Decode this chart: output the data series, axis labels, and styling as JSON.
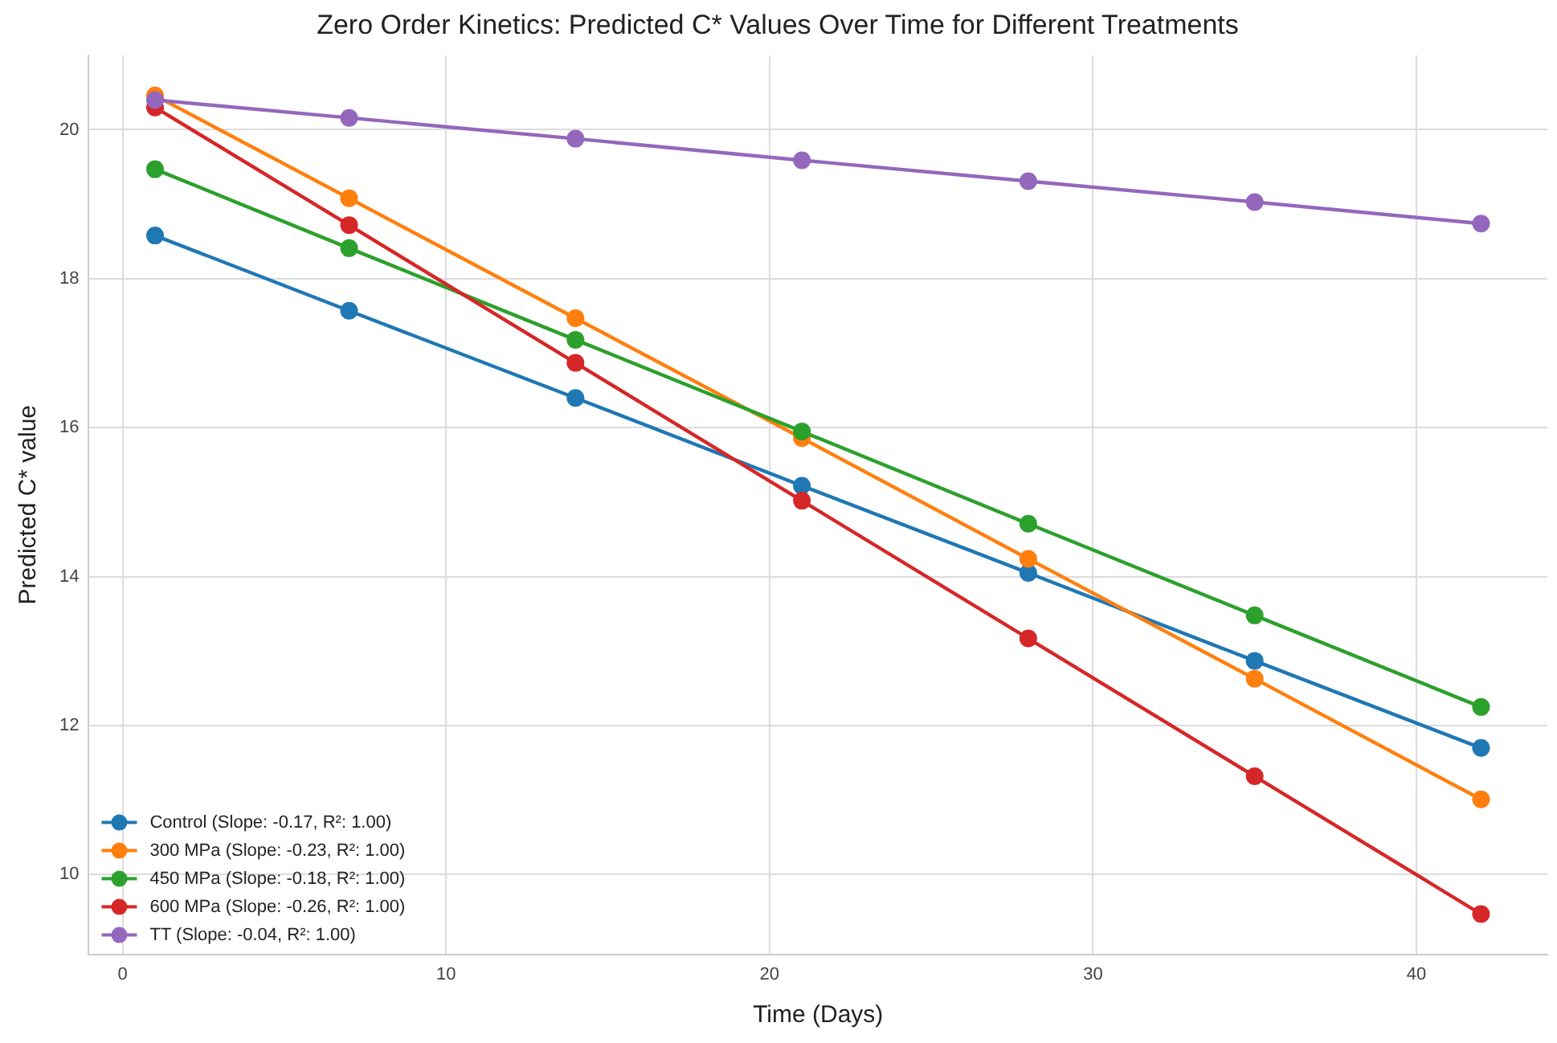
{
  "chart_data": {
    "type": "line",
    "title": "Zero Order Kinetics: Predicted C* Values Over Time for Different Treatments",
    "xlabel": "Time (Days)",
    "ylabel": "Predicted C* value",
    "x": [
      1,
      7,
      14,
      21,
      28,
      35,
      42
    ],
    "series": [
      {
        "name": "Control (Slope: -0.17, R²: 1.00)",
        "color": "#1f77b4",
        "values": [
          18.58,
          17.57,
          16.4,
          15.22,
          14.05,
          12.87,
          11.7
        ]
      },
      {
        "name": "300 MPa (Slope: -0.23, R²: 1.00)",
        "color": "#ff7f0e",
        "values": [
          20.46,
          19.08,
          17.47,
          15.86,
          14.24,
          12.63,
          11.01
        ]
      },
      {
        "name": "450 MPa (Slope: -0.18, R²: 1.00)",
        "color": "#2ca02c",
        "values": [
          19.47,
          18.41,
          17.18,
          15.95,
          14.71,
          13.48,
          12.25
        ]
      },
      {
        "name": "600 MPa (Slope: -0.26, R²: 1.00)",
        "color": "#d62728",
        "values": [
          20.3,
          18.72,
          16.87,
          15.02,
          13.17,
          11.32,
          9.47
        ]
      },
      {
        "name": "TT (Slope: -0.04, R²: 1.00)",
        "color": "#9467bd",
        "values": [
          20.4,
          20.16,
          19.88,
          19.59,
          19.31,
          19.03,
          18.74
        ]
      }
    ],
    "xlim": [
      -1.05,
      44.05
    ],
    "xticks": [
      0,
      10,
      20,
      30,
      40
    ],
    "ylim": [
      8.93,
      21.0
    ],
    "yticks": [
      10,
      12,
      14,
      16,
      18,
      20
    ],
    "grid": true,
    "legend": "bottom left",
    "marker": "circle",
    "line_style": "solid"
  }
}
